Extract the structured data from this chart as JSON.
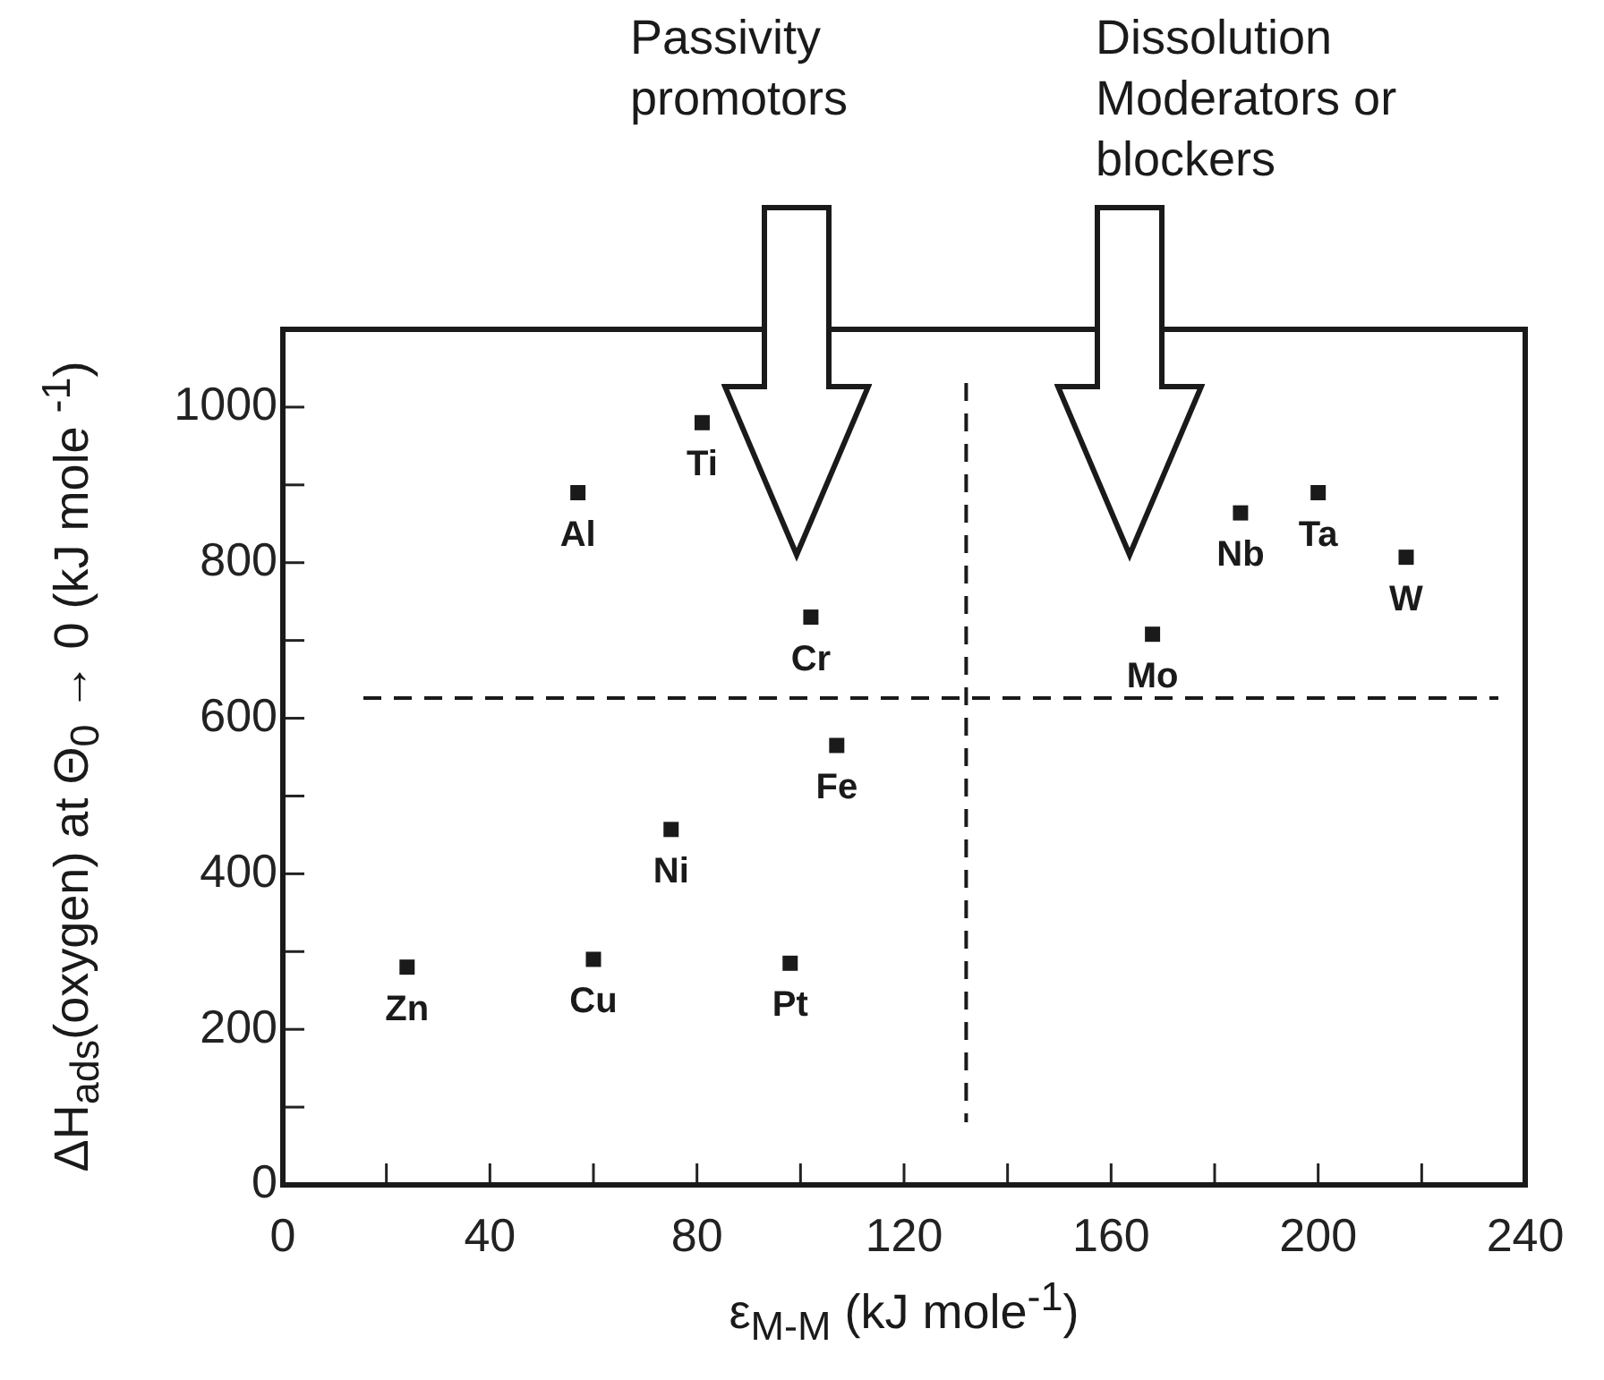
{
  "chart_data": {
    "type": "scatter",
    "xlabel": "ε$_{M-M}$ (kJ mole$^{-1}$)",
    "ylabel": "ΔH$_{ads}$(oxygen) at Θ$_{0}$ → 0 (kJ mole $^{-1}$)",
    "series": [
      {
        "color": "#1a1a1a",
        "x": [
          24,
          60,
          98,
          75,
          107,
          102,
          57,
          81,
          168,
          185,
          200,
          217
        ],
        "values": [
          280,
          290,
          285,
          457,
          565,
          730,
          890,
          980,
          708,
          864,
          890,
          807
        ]
      }
    ],
    "marker": "square",
    "annotations": [
      "Passivity promotors",
      "Dissolution Moderators or blockers",
      {
        "text": "Zn",
        "x": 24,
        "y": 280
      },
      {
        "text": "Cu",
        "x": 60,
        "y": 290
      },
      {
        "text": "Pt",
        "x": 98,
        "y": 285
      },
      {
        "text": "Ni",
        "x": 75,
        "y": 457
      },
      {
        "text": "Fe",
        "x": 107,
        "y": 565
      },
      {
        "text": "Cr",
        "x": 102,
        "y": 730
      },
      {
        "text": "Al",
        "x": 57,
        "y": 890
      },
      {
        "text": "Ti",
        "x": 81,
        "y": 980
      },
      {
        "text": "Mo",
        "x": 168,
        "y": 708
      },
      {
        "text": "Nb",
        "x": 185,
        "y": 864
      },
      {
        "text": "Ta",
        "x": 200,
        "y": 890
      },
      {
        "text": "W",
        "x": 217,
        "y": 807
      }
    ],
    "ref_lines": [
      {
        "axis": "x",
        "value": 132,
        "line_style": "dashed",
        "color": "#1a1a1a"
      },
      {
        "axis": "y",
        "value": 626,
        "line_style": "dashed",
        "color": "#1a1a1a"
      }
    ],
    "xlim": [
      0,
      240
    ],
    "ylim": [
      0,
      1100
    ],
    "xticks": [
      0,
      {
        "value": 20,
        "label": null
      },
      40,
      {
        "value": 60,
        "label": null
      },
      80,
      {
        "value": 100,
        "label": null
      },
      120,
      {
        "value": 140,
        "label": null
      },
      160,
      {
        "value": 180,
        "label": null
      },
      200,
      {
        "value": 220,
        "label": null
      },
      240
    ],
    "yticks": [
      0,
      {
        "value": 100,
        "label": null
      },
      200,
      {
        "value": 300,
        "label": null
      },
      400,
      {
        "value": 500,
        "label": null
      },
      600,
      {
        "value": 700,
        "label": null
      },
      800,
      {
        "value": 900,
        "label": null
      },
      1000
    ]
  }
}
